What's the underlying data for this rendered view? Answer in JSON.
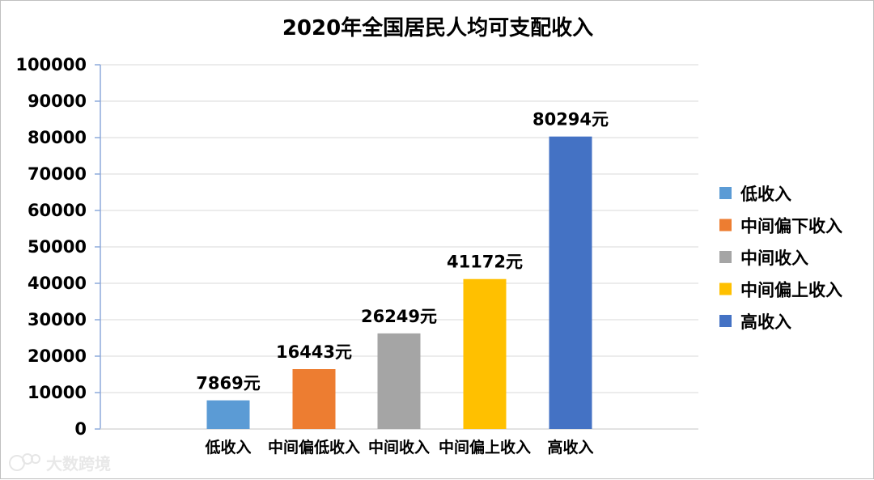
{
  "chart_data": {
    "type": "bar",
    "title": "2020年全国居民人均可支配收入",
    "categories": [
      "低收入",
      "中间偏低收入",
      "中间收入",
      "中间偏上收入",
      "高收入"
    ],
    "values": [
      7869,
      16443,
      26249,
      41172,
      80294
    ],
    "data_labels": [
      "7869元",
      "16443元",
      "26249元",
      "41172元",
      "80294元"
    ],
    "colors": [
      "#5b9bd5",
      "#ed7d31",
      "#a5a5a5",
      "#ffc000",
      "#4472c4"
    ],
    "ylim": [
      0,
      100000
    ],
    "yticks": [
      0,
      10000,
      20000,
      30000,
      40000,
      50000,
      60000,
      70000,
      80000,
      90000,
      100000
    ],
    "ytick_labels": [
      "0",
      "10000",
      "20000",
      "30000",
      "40000",
      "50000",
      "60000",
      "70000",
      "80000",
      "90000",
      "100000"
    ],
    "grid": true,
    "legend": {
      "position": "right",
      "entries": [
        "低收入",
        "中间偏下收入",
        "中间收入",
        "中间偏上收入",
        "高收入"
      ]
    }
  },
  "watermark": {
    "text": "大数跨境",
    "color": "#e6e6e6"
  }
}
